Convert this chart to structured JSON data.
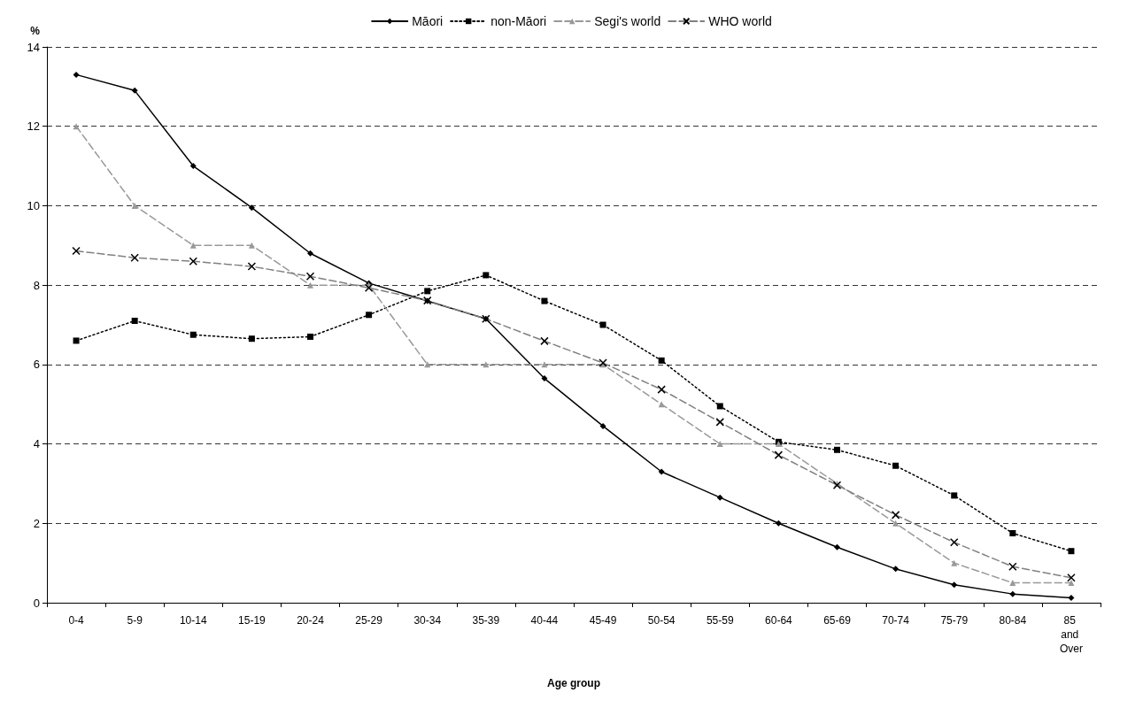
{
  "chart_data": {
    "type": "line",
    "xlabel": "Age group",
    "ylabel": "%",
    "categories": [
      "0-4",
      "5-9",
      "10-14",
      "15-19",
      "20-24",
      "25-29",
      "30-34",
      "35-39",
      "40-44",
      "45-49",
      "50-54",
      "55-59",
      "60-64",
      "65-69",
      "70-74",
      "75-79",
      "80-84",
      "85 and Over"
    ],
    "series": [
      {
        "name": "Māori",
        "color": "#000000",
        "marker": "diamond",
        "line_style": "solid",
        "values": [
          13.3,
          12.9,
          11.0,
          9.95,
          8.8,
          8.05,
          7.6,
          7.15,
          5.65,
          4.45,
          3.3,
          2.65,
          2.0,
          1.4,
          0.85,
          0.45,
          0.22,
          0.12
        ]
      },
      {
        "name": "non-Māori",
        "color": "#000000",
        "marker": "square",
        "line_style": "dotted",
        "values": [
          6.6,
          7.1,
          6.75,
          6.65,
          6.7,
          7.25,
          7.85,
          8.25,
          7.6,
          7.0,
          6.1,
          4.95,
          4.05,
          3.85,
          3.45,
          2.7,
          1.75,
          1.3
        ]
      },
      {
        "name": "Segi's world",
        "color": "#999999",
        "marker": "triangle",
        "line_style": "dashed",
        "values": [
          12,
          10,
          9,
          9,
          8,
          8,
          6,
          6,
          6,
          6,
          5,
          4,
          4,
          3,
          2,
          1,
          0.5,
          0.5
        ]
      },
      {
        "name": "WHO world",
        "color": "#000000",
        "marker": "cross",
        "line_style": "dashed",
        "values": [
          8.86,
          8.69,
          8.6,
          8.47,
          8.22,
          7.93,
          7.61,
          7.15,
          6.59,
          6.04,
          5.37,
          4.55,
          3.72,
          2.96,
          2.21,
          1.52,
          0.91,
          0.63
        ]
      }
    ],
    "ylim": [
      0,
      14
    ],
    "yticks": [
      0,
      2,
      4,
      6,
      8,
      10,
      12,
      14
    ],
    "grid": "y",
    "legend": "top"
  }
}
